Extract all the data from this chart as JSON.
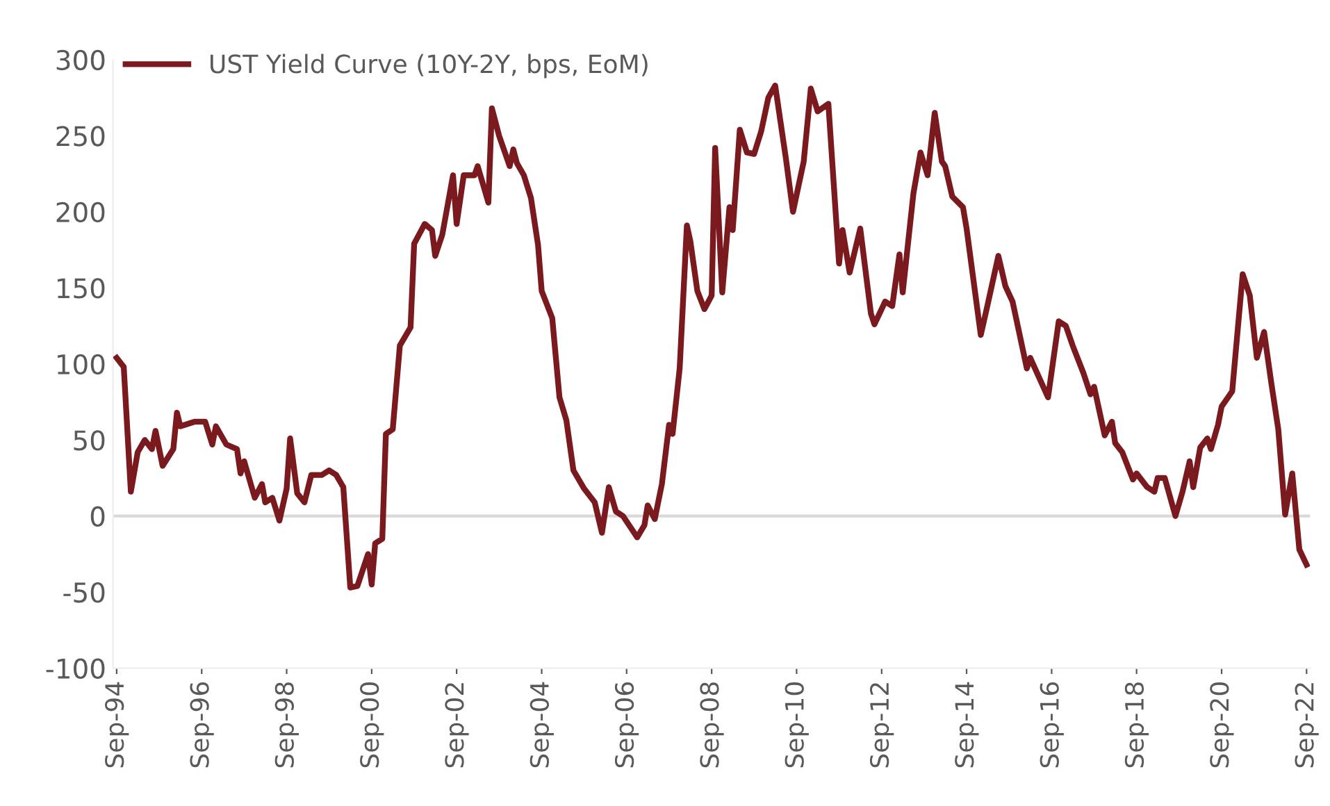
{
  "chart_data": {
    "type": "line",
    "legend": "top left",
    "grid": false,
    "line_style": "solid",
    "marker": "none",
    "ylim": [
      -100,
      300
    ],
    "yticks": [
      -100,
      -50,
      0,
      50,
      100,
      150,
      200,
      250,
      300
    ],
    "xlim": [
      "1994-08",
      "2022-10"
    ],
    "xticks": [
      {
        "value": "1994-09",
        "label": "Sep-94"
      },
      {
        "value": "1996-09",
        "label": "Sep-96"
      },
      {
        "value": "1998-09",
        "label": "Sep-98"
      },
      {
        "value": "2000-09",
        "label": "Sep-00"
      },
      {
        "value": "2002-09",
        "label": "Sep-02"
      },
      {
        "value": "2004-09",
        "label": "Sep-04"
      },
      {
        "value": "2006-09",
        "label": "Sep-06"
      },
      {
        "value": "2008-09",
        "label": "Sep-08"
      },
      {
        "value": "2010-09",
        "label": "Sep-10"
      },
      {
        "value": "2012-09",
        "label": "Sep-12"
      },
      {
        "value": "2014-09",
        "label": "Sep-14"
      },
      {
        "value": "2016-09",
        "label": "Sep-16"
      },
      {
        "value": "2018-09",
        "label": "Sep-18"
      },
      {
        "value": "2020-09",
        "label": "Sep-20"
      },
      {
        "value": "2022-09",
        "label": "Sep-22"
      }
    ],
    "ref_lines": [
      {
        "axis": "y",
        "value": 0,
        "color": "#d9d9d9"
      }
    ],
    "x": [
      "1994-09",
      "1994-11",
      "1995-01",
      "1995-03",
      "1995-05",
      "1995-07",
      "1995-08",
      "1995-10",
      "1996-01",
      "1996-02",
      "1996-03",
      "1996-07",
      "1996-10",
      "1996-12",
      "1997-01",
      "1997-04",
      "1997-07",
      "1997-08",
      "1997-09",
      "1997-12",
      "1998-02",
      "1998-03",
      "1998-05",
      "1998-07",
      "1998-09",
      "1998-10",
      "1998-12",
      "1999-02",
      "1999-04",
      "1999-07",
      "1999-09",
      "1999-11",
      "2000-01",
      "2000-03",
      "2000-05",
      "2000-08",
      "2000-09",
      "2000-10",
      "2000-12",
      "2001-01",
      "2001-03",
      "2001-05",
      "2001-08",
      "2001-09",
      "2001-12",
      "2002-02",
      "2002-03",
      "2002-05",
      "2002-08",
      "2002-09",
      "2002-11",
      "2003-02",
      "2003-03",
      "2003-06",
      "2003-07",
      "2003-09",
      "2003-12",
      "2004-01",
      "2004-02",
      "2004-04",
      "2004-06",
      "2004-08",
      "2004-09",
      "2004-12",
      "2005-02",
      "2005-04",
      "2005-06",
      "2005-09",
      "2005-12",
      "2006-02",
      "2006-04",
      "2006-06",
      "2006-08",
      "2006-12",
      "2007-02",
      "2007-03",
      "2007-05",
      "2007-07",
      "2007-09",
      "2007-10",
      "2007-12",
      "2008-02",
      "2008-03",
      "2008-05",
      "2008-07",
      "2008-09",
      "2008-10",
      "2008-12",
      "2009-02",
      "2009-03",
      "2009-05",
      "2009-07",
      "2009-09",
      "2009-11",
      "2010-01",
      "2010-03",
      "2010-06",
      "2010-08",
      "2010-11",
      "2011-01",
      "2011-03",
      "2011-06",
      "2011-09",
      "2011-10",
      "2011-12",
      "2012-03",
      "2012-06",
      "2012-07",
      "2012-10",
      "2012-12",
      "2013-02",
      "2013-03",
      "2013-06",
      "2013-08",
      "2013-10",
      "2013-12",
      "2014-02",
      "2014-03",
      "2014-05",
      "2014-08",
      "2014-09",
      "2015-01",
      "2015-03",
      "2015-06",
      "2015-08",
      "2015-10",
      "2016-02",
      "2016-03",
      "2016-08",
      "2016-11",
      "2017-01",
      "2017-03",
      "2017-06",
      "2017-08",
      "2017-09",
      "2017-12",
      "2018-02",
      "2018-03",
      "2018-05",
      "2018-08",
      "2018-09",
      "2018-12",
      "2019-02",
      "2019-03",
      "2019-05",
      "2019-08",
      "2019-10",
      "2019-12",
      "2020-01",
      "2020-03",
      "2020-05",
      "2020-06",
      "2020-08",
      "2020-09",
      "2020-12",
      "2021-03",
      "2021-05",
      "2021-07",
      "2021-09",
      "2021-11",
      "2022-01",
      "2022-03",
      "2022-05",
      "2022-07",
      "2022-09"
    ],
    "series": [
      {
        "name": "UST Yield Curve (10Y-2Y, bps, EoM)",
        "color": "#7b1a1e",
        "values": [
          104,
          98,
          16,
          42,
          50,
          44,
          56,
          33,
          44,
          68,
          59,
          62,
          62,
          47,
          59,
          47,
          44,
          28,
          36,
          12,
          21,
          9,
          12,
          -3,
          18,
          51,
          15,
          9,
          27,
          27,
          30,
          27,
          19,
          -47,
          -46,
          -25,
          -45,
          -18,
          -15,
          54,
          57,
          112,
          124,
          179,
          192,
          188,
          171,
          185,
          224,
          192,
          224,
          224,
          230,
          206,
          268,
          250,
          230,
          241,
          232,
          224,
          209,
          178,
          148,
          130,
          78,
          63,
          30,
          18,
          9,
          -11,
          19,
          3,
          0,
          -14,
          -6,
          7,
          -2,
          21,
          60,
          54,
          97,
          191,
          181,
          148,
          136,
          145,
          242,
          147,
          203,
          188,
          254,
          239,
          238,
          253,
          275,
          283,
          235,
          200,
          233,
          281,
          266,
          271,
          166,
          188,
          160,
          189,
          133,
          126,
          141,
          138,
          172,
          147,
          212,
          239,
          224,
          265,
          233,
          230,
          210,
          203,
          189,
          119,
          139,
          171,
          151,
          141,
          97,
          104,
          78,
          128,
          125,
          112,
          94,
          80,
          85,
          53,
          62,
          48,
          42,
          24,
          28,
          19,
          16,
          25,
          25,
          0,
          16,
          36,
          19,
          45,
          51,
          44,
          60,
          72,
          82,
          159,
          145,
          104,
          121,
          88,
          57,
          1,
          28,
          -22,
          -32
        ]
      }
    ]
  }
}
